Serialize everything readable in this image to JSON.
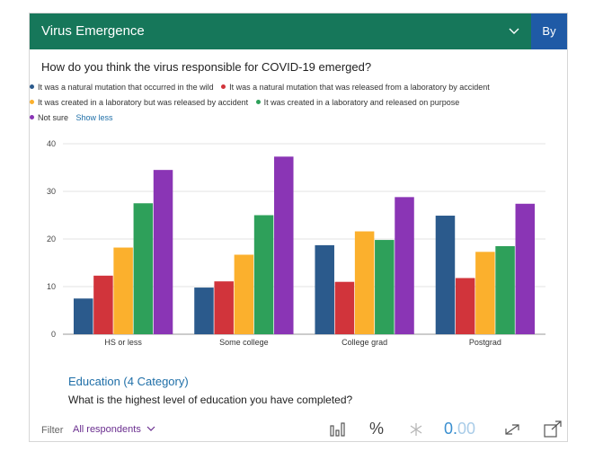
{
  "header": {
    "title": "Virus Emergence",
    "by_label": "By",
    "chevron_icon": "chevron-down-icon"
  },
  "question": "How do you think the virus responsible for COVID-19 emerged?",
  "legend": {
    "items": [
      {
        "label": "It was a natural mutation that occurred in the wild",
        "color": "#2b5a8c"
      },
      {
        "label": "It was a natural mutation that was released from a laboratory by accident",
        "color": "#d1343b"
      },
      {
        "label": "It was created in a laboratory but was released by accident",
        "color": "#fbb02d"
      },
      {
        "label": "It was created in a laboratory and released on purpose",
        "color": "#2ea05a"
      },
      {
        "label": "Not sure",
        "color": "#8a35b5"
      }
    ],
    "show_less": "Show less"
  },
  "chart_data": {
    "type": "bar",
    "title": "How do you think the virus responsible for COVID-19 emerged?",
    "xlabel": "",
    "ylabel": "",
    "ylim": [
      0,
      40
    ],
    "yticks": [
      "0",
      "10",
      "20",
      "30",
      "40"
    ],
    "categories": [
      "HS or less",
      "Some college",
      "College grad",
      "Postgrad"
    ],
    "series": [
      {
        "name": "It was a natural mutation that occurred in the wild",
        "color": "#2b5a8c",
        "values": [
          7.5,
          9.8,
          18.7,
          24.9
        ]
      },
      {
        "name": "It was a natural mutation that was released from a laboratory by accident",
        "color": "#d1343b",
        "values": [
          12.3,
          11.1,
          11.0,
          11.8
        ]
      },
      {
        "name": "It was created in a laboratory but was released by accident",
        "color": "#fbb02d",
        "values": [
          18.2,
          16.7,
          21.6,
          17.3
        ]
      },
      {
        "name": "It was created in a laboratory and released on purpose",
        "color": "#2ea05a",
        "values": [
          27.5,
          25.0,
          19.8,
          18.5
        ]
      },
      {
        "name": "Not sure",
        "color": "#8a35b5",
        "values": [
          34.5,
          37.3,
          28.8,
          27.4
        ]
      }
    ]
  },
  "subtitle": "Education (4 Category)",
  "sub_question": "What is the highest level of education you have completed?",
  "footer": {
    "filter_label": "Filter",
    "filter_value": "All respondents",
    "percent_symbol": "%",
    "decimals_main": "0.",
    "decimals_dim": "00",
    "icons": [
      "bar-chart-icon",
      "asterisk-icon",
      "swap-icon",
      "expand-icon"
    ]
  }
}
